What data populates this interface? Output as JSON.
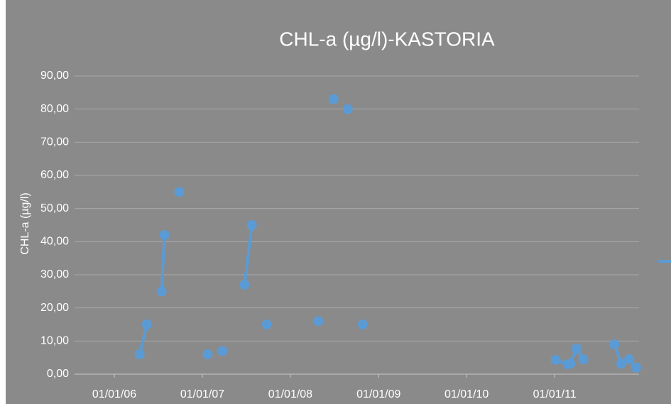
{
  "chart_data": {
    "type": "line",
    "title": "CHL-a (µg/l)-KASTORIA",
    "ylabel": "CHL-a (µg/l)",
    "x": [
      "2006-04-16",
      "2006-05-16",
      null,
      "2006-07-16",
      "2006-07-28",
      null,
      "2006-09-27",
      null,
      "2007-01-23",
      null,
      "2007-03-25",
      null,
      "2007-06-25",
      "2007-07-25",
      null,
      "2007-09-25",
      null,
      "2008-04-26",
      null,
      "2008-06-28",
      null,
      "2008-08-26",
      null,
      "2008-10-27",
      null,
      "2011-01-05",
      "2011-02-24",
      "2011-03-07",
      "2011-04-01",
      "2011-04-30",
      null,
      "2011-09-05",
      "2011-10-04",
      "2011-11-06",
      "2011-12-05"
    ],
    "series": [
      {
        "color": "#5b9bd5",
        "values": [
          6,
          15,
          null,
          25,
          42,
          null,
          55,
          null,
          6,
          null,
          7,
          null,
          27,
          45,
          null,
          15,
          null,
          16,
          null,
          83,
          null,
          80,
          null,
          15,
          null,
          4.3,
          3,
          3.2,
          7.7,
          4.5,
          null,
          9,
          3.2,
          4.5,
          2
        ]
      }
    ],
    "xlim": [
      "2005-07-20",
      "2011-12-17"
    ],
    "xticks": [
      {
        "value": "2006-01-01",
        "label": "01/01/06"
      },
      {
        "value": "2007-01-01",
        "label": "01/01/07"
      },
      {
        "value": "2008-01-01",
        "label": "01/01/08"
      },
      {
        "value": "2009-01-01",
        "label": "01/01/09"
      },
      {
        "value": "2010-01-01",
        "label": "01/01/10"
      },
      {
        "value": "2011-01-01",
        "label": "01/01/11"
      }
    ],
    "ylim": [
      0,
      90
    ],
    "yticks": [
      {
        "value": 0,
        "label": "0,00"
      },
      {
        "value": 10,
        "label": "10,00"
      },
      {
        "value": 20,
        "label": "20,00"
      },
      {
        "value": 30,
        "label": "30,00"
      },
      {
        "value": 40,
        "label": "40,00"
      },
      {
        "value": 50,
        "label": "50,00"
      },
      {
        "value": 60,
        "label": "60,00"
      },
      {
        "value": 70,
        "label": "70,00"
      },
      {
        "value": 80,
        "label": "80,00"
      },
      {
        "value": 90,
        "label": "90,00"
      }
    ],
    "grid": true
  }
}
